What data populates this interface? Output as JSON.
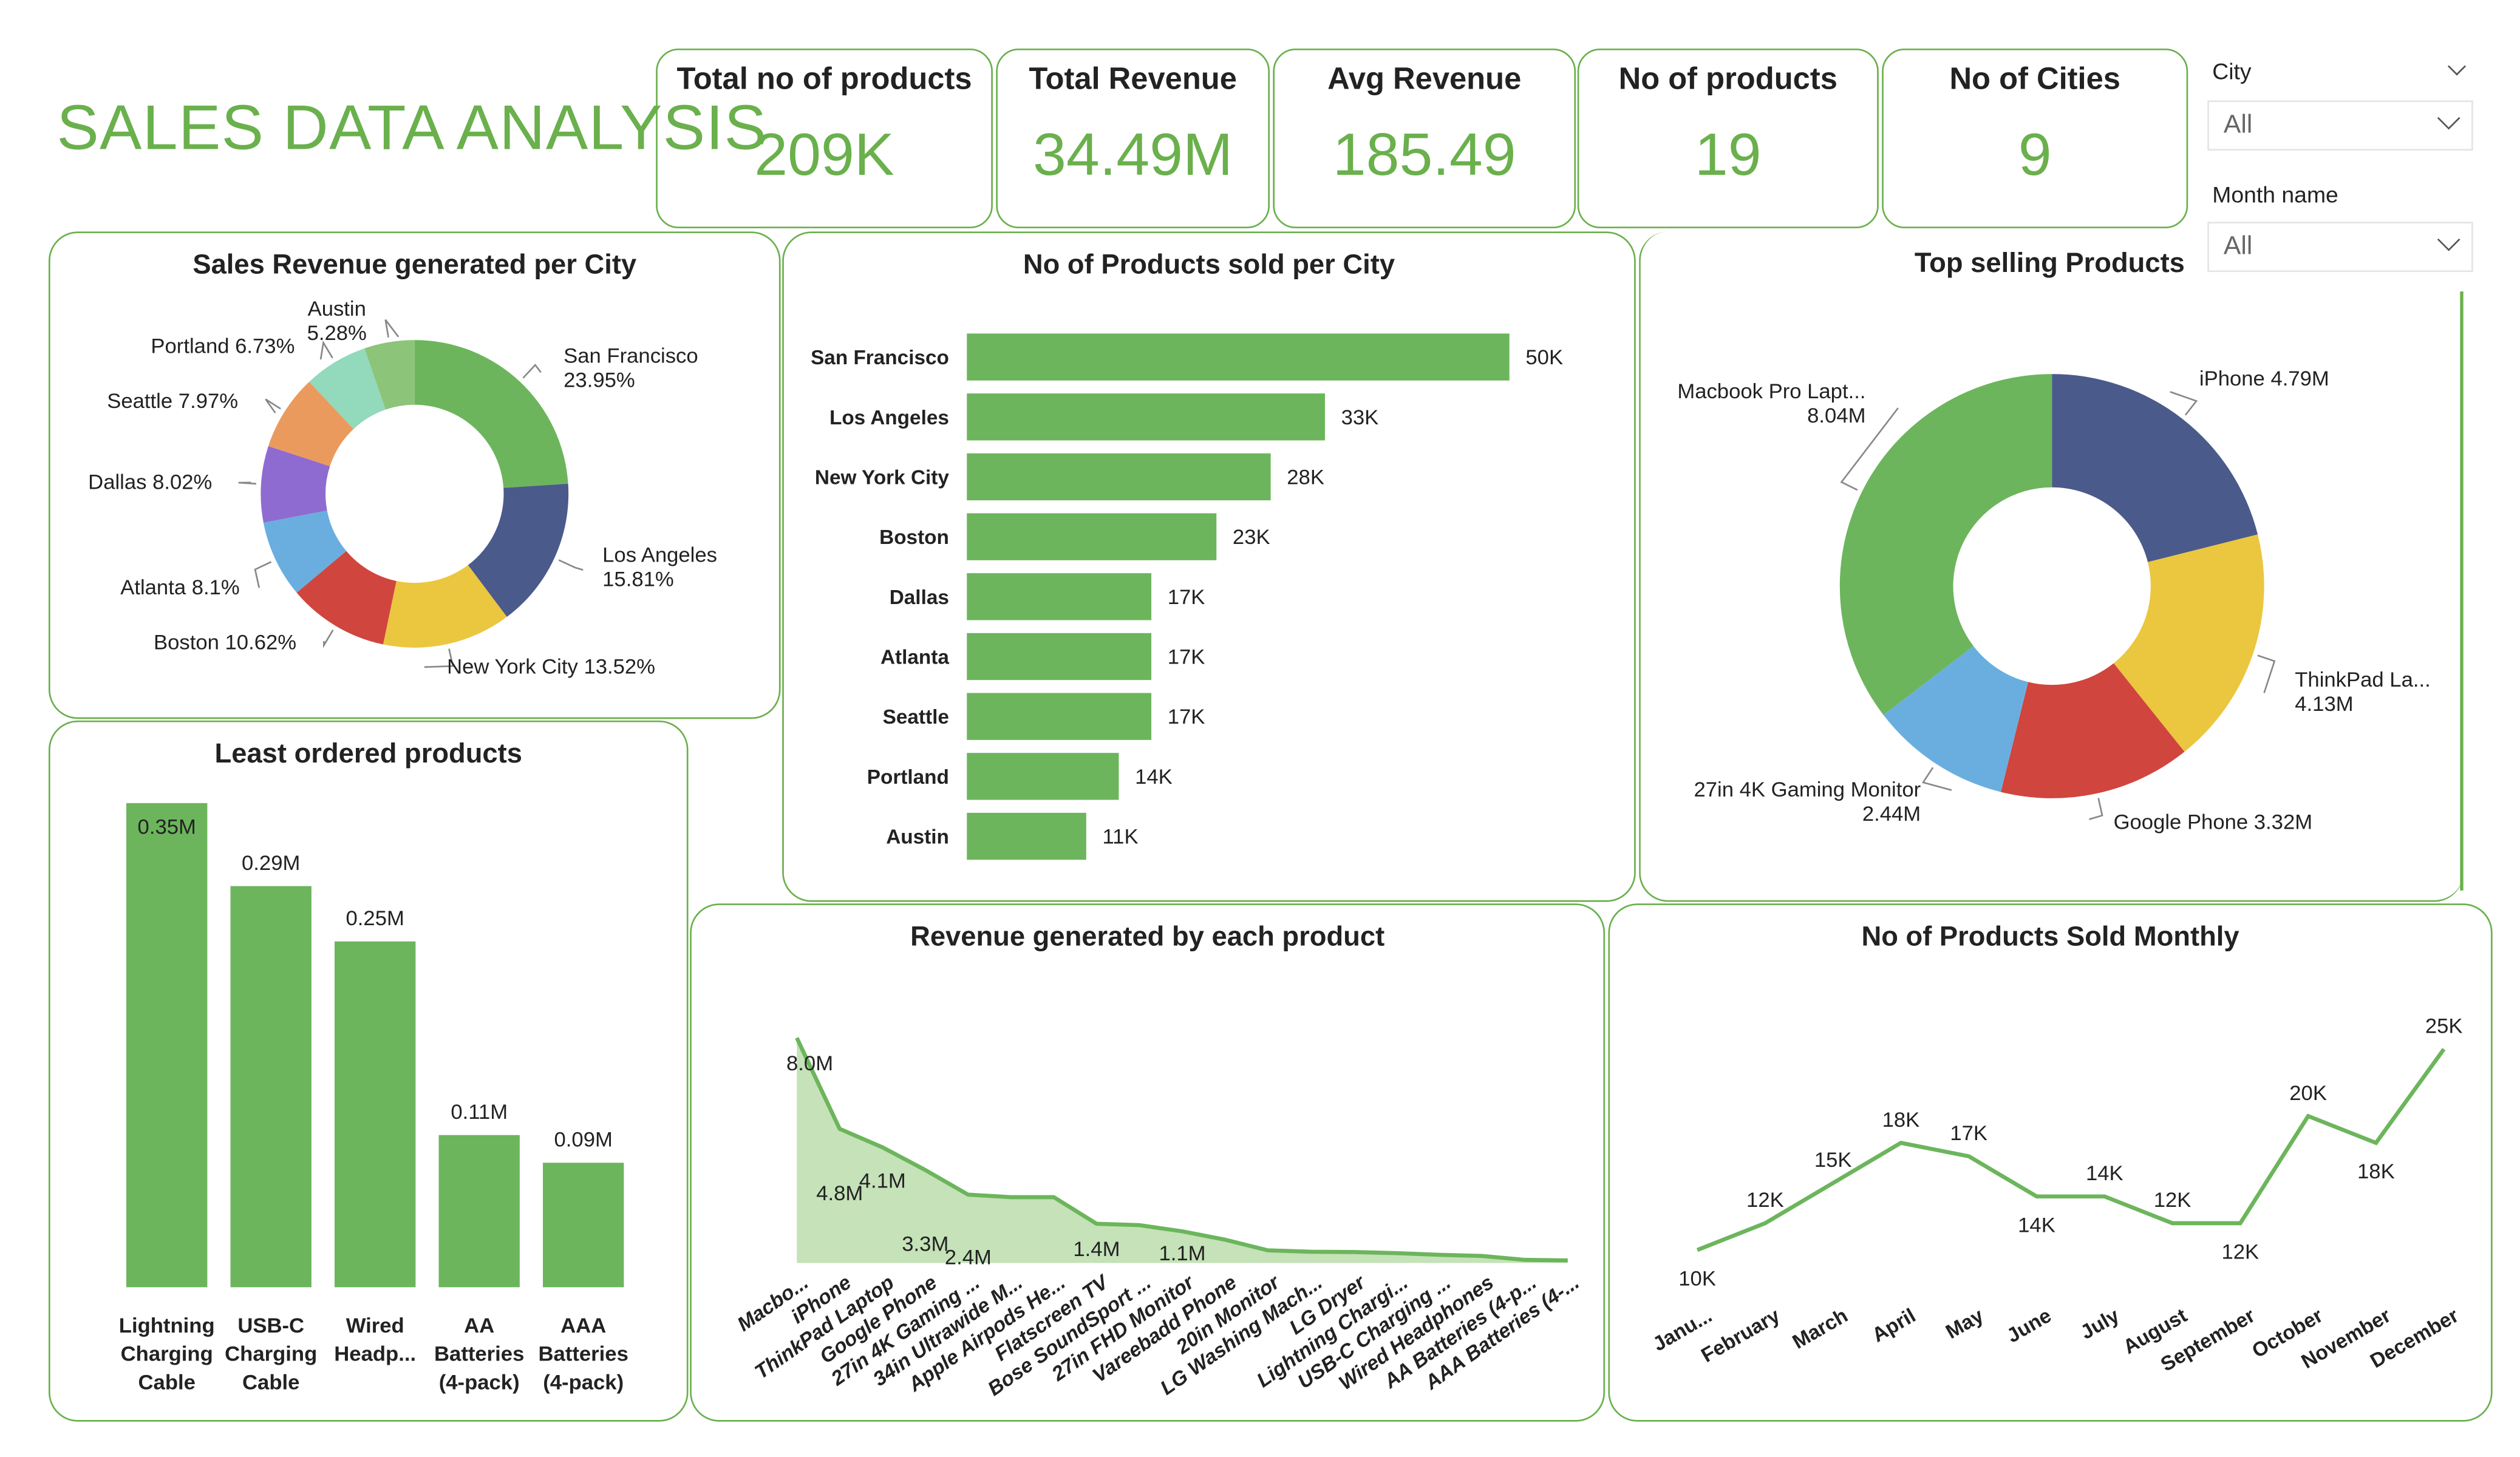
{
  "title": "SALES DATA ANALYSIS",
  "kpis": [
    {
      "label": "Total no of products",
      "value": "209K"
    },
    {
      "label": "Total Revenue",
      "value": "34.49M"
    },
    {
      "label": "Avg Revenue",
      "value": "185.49"
    },
    {
      "label": "No of products",
      "value": "19"
    },
    {
      "label": "No of Cities",
      "value": "9"
    }
  ],
  "slicers": [
    {
      "label": "City",
      "value": "All",
      "icon": "chevron-down-icon"
    },
    {
      "label": "Month name",
      "value": "All",
      "icon": "chevron-down-icon"
    }
  ],
  "colors": {
    "accent": "#6ab04c",
    "fill": "#c5e2b8"
  },
  "chart_data": [
    {
      "type": "pie",
      "title": "Sales Revenue generated per City",
      "categories": [
        "San Francisco",
        "Los Angeles",
        "New York City",
        "Boston",
        "Atlanta",
        "Dallas",
        "Seattle",
        "Portland",
        "Austin"
      ],
      "values": [
        23.95,
        15.81,
        13.52,
        10.62,
        8.1,
        8.02,
        7.97,
        6.73,
        5.28
      ],
      "value_suffix": "%",
      "colors": [
        "#6cb55c",
        "#4a5a8a",
        "#ebc63f",
        "#d0453e",
        "#6aaee0",
        "#8e6bd1",
        "#eb9a5e",
        "#93d9bc",
        "#8cc47a"
      ],
      "donut": true
    },
    {
      "type": "bar",
      "orientation": "horizontal",
      "title": "No of Products sold per City",
      "categories": [
        "San Francisco",
        "Los Angeles",
        "New York City",
        "Boston",
        "Dallas",
        "Atlanta",
        "Seattle",
        "Portland",
        "Austin"
      ],
      "values": [
        50,
        33,
        28,
        23,
        17,
        17,
        17,
        14,
        11
      ],
      "data_labels": [
        "50K",
        "33K",
        "28K",
        "23K",
        "17K",
        "17K",
        "17K",
        "14K",
        "11K"
      ],
      "color": "#6cb55c"
    },
    {
      "type": "pie",
      "title": "Top selling Products",
      "categories": [
        "iPhone",
        "ThinkPad La...",
        "Google Phone",
        "27in 4K Gaming Monitor",
        "Macbook Pro Lapt..."
      ],
      "values": [
        4.79,
        4.13,
        3.32,
        2.44,
        8.04
      ],
      "data_labels": [
        "4.79M",
        "4.13M",
        "3.32M",
        "2.44M",
        "8.04M"
      ],
      "colors": [
        "#4a5a8a",
        "#ebc63f",
        "#d0453e",
        "#6aaee0",
        "#6cb55c"
      ],
      "donut": true
    },
    {
      "type": "bar",
      "title": "Least ordered products",
      "categories": [
        "Lightning Charging Cable",
        "USB-C Charging Cable",
        "Wired Headp...",
        "AA Batteries (4-pack)",
        "AAA Batteries (4-pack)"
      ],
      "category_lines": [
        [
          "Lightning",
          "Charging",
          "Cable"
        ],
        [
          "USB-C",
          "Charging",
          "Cable"
        ],
        [
          "Wired",
          "Headp..."
        ],
        [
          "AA",
          "Batteries",
          "(4-pack)"
        ],
        [
          "AAA",
          "Batteries",
          "(4-pack)"
        ]
      ],
      "values": [
        0.35,
        0.29,
        0.25,
        0.11,
        0.09
      ],
      "data_labels": [
        "0.35M",
        "0.29M",
        "0.25M",
        "0.11M",
        "0.09M"
      ],
      "color": "#6cb55c"
    },
    {
      "type": "area",
      "title": "Revenue generated by each product",
      "categories": [
        "Macbo...",
        "iPhone",
        "ThinkPad Laptop",
        "Google Phone",
        "27in 4K Gaming ...",
        "34in Ultrawide M...",
        "Apple Airpods He...",
        "Flatscreen TV",
        "Bose SoundSport ...",
        "27in FHD Monitor",
        "Vareebadd Phone",
        "20in Monitor",
        "LG Washing Mach...",
        "LG Dryer",
        "Lightning Chargi...",
        "USB-C Charging ...",
        "Wired Headphones",
        "AA Batteries (4-p...",
        "AAA Batteries (4-..."
      ],
      "values": [
        8.04,
        4.79,
        4.13,
        3.32,
        2.44,
        2.35,
        2.35,
        1.4,
        1.35,
        1.13,
        0.83,
        0.45,
        0.4,
        0.39,
        0.35,
        0.29,
        0.25,
        0.11,
        0.09
      ],
      "data_labels": [
        "8.0M",
        "4.8M",
        "4.1M",
        "3.3M",
        "2.4M",
        "",
        "",
        "1.4M",
        "",
        "1.1M",
        "",
        "",
        "",
        "",
        "",
        "",
        "",
        "",
        ""
      ],
      "unit": "M"
    },
    {
      "type": "line",
      "title": "No of Products Sold Monthly",
      "categories": [
        "Janu...",
        "February",
        "March",
        "April",
        "May",
        "June",
        "July",
        "August",
        "September",
        "October",
        "November",
        "December"
      ],
      "values": [
        10,
        12,
        15,
        18,
        17,
        14,
        14,
        12,
        12,
        20,
        18,
        25
      ],
      "data_labels": [
        "10K",
        "12K",
        "15K",
        "18K",
        "17K",
        "14K",
        "14K",
        "12K",
        "12K",
        "20K",
        "18K",
        "25K"
      ],
      "unit": "K"
    }
  ]
}
